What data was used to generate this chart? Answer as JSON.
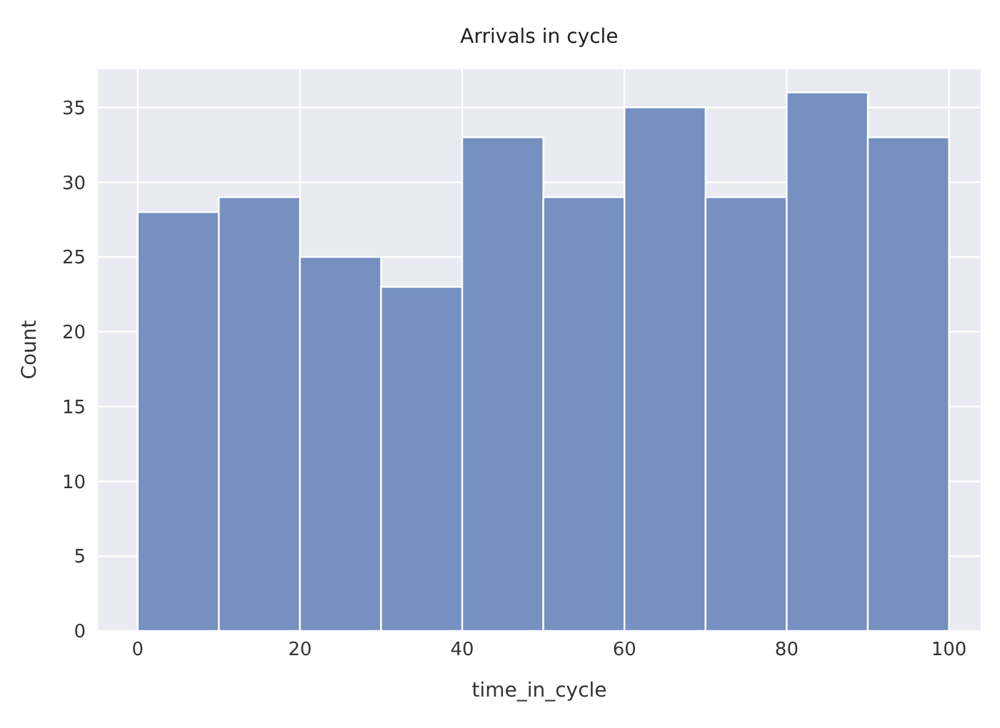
{
  "chart_data": {
    "type": "histogram",
    "title": "Arrivals in cycle",
    "xlabel": "time_in_cycle",
    "ylabel": "Count",
    "bins": [
      0,
      10,
      20,
      30,
      40,
      50,
      60,
      70,
      80,
      90,
      100
    ],
    "values": [
      28,
      29,
      25,
      23,
      33,
      29,
      35,
      29,
      36,
      33
    ],
    "color": "#7590c1",
    "xlim": [
      -5,
      104
    ],
    "xticks": [
      0,
      20,
      40,
      60,
      80,
      100
    ],
    "ylim": [
      0,
      37.6
    ],
    "yticks": [
      0,
      5,
      10,
      15,
      20,
      25,
      30,
      35
    ],
    "grid": true
  }
}
